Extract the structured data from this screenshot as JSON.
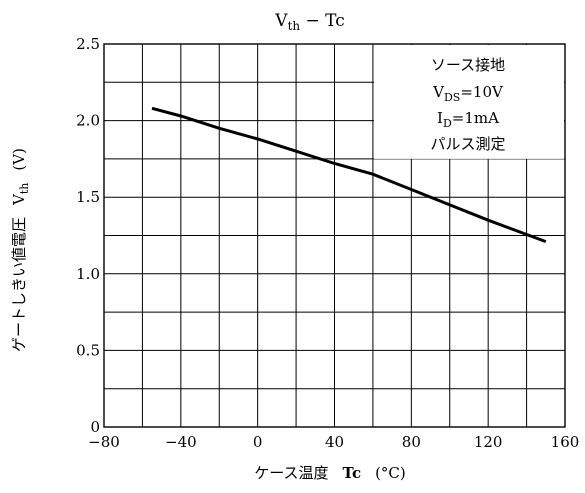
{
  "chart_data": {
    "type": "line",
    "title": {
      "main": "V",
      "sub": "th",
      "rest": " − Tc"
    },
    "xlabel": {
      "jp": "ケース温度",
      "sym": "Tc",
      "unit": "(°C)"
    },
    "ylabel": {
      "jp": "ゲートしきい値電圧",
      "sym": "V",
      "sub": "th",
      "unit": "(V)"
    },
    "xlim": [
      -80,
      160
    ],
    "ylim": [
      0,
      2.5
    ],
    "x_ticks": [
      "−80",
      "−40",
      "0",
      "40",
      "80",
      "120",
      "160"
    ],
    "y_ticks": [
      "0",
      "0.5",
      "1.0",
      "1.5",
      "2.0",
      "2.5"
    ],
    "grid": true,
    "conditions": [
      {
        "text": "ソース接地"
      },
      {
        "main": "V",
        "sub": "DS",
        "rest": "=10V"
      },
      {
        "main": "I",
        "sub": "D",
        "rest": "=1mA"
      },
      {
        "text": "パルス測定"
      }
    ],
    "series": [
      {
        "x": [
          -55,
          -40,
          -20,
          0,
          20,
          40,
          60,
          80,
          100,
          120,
          150
        ],
        "y": [
          2.08,
          2.03,
          1.95,
          1.88,
          1.8,
          1.72,
          1.65,
          1.55,
          1.45,
          1.35,
          1.21
        ]
      }
    ]
  }
}
